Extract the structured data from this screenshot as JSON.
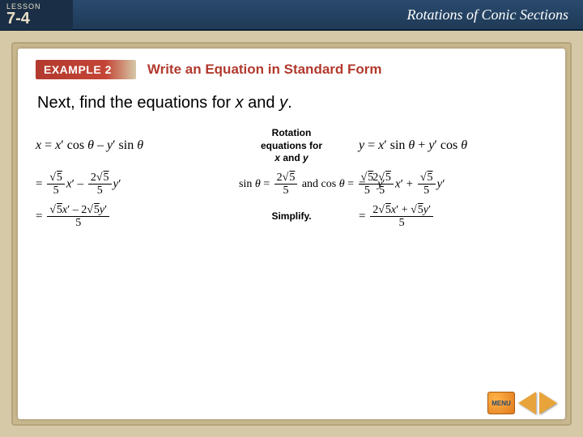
{
  "header": {
    "lesson_label": "LESSON",
    "lesson_number": "7-4",
    "title": "Rotations of Conic Sections"
  },
  "example": {
    "badge": "EXAMPLE 2",
    "title": "Write an Equation in Standard Form"
  },
  "instruction": {
    "prefix": "Next, find the equations for ",
    "x": "x",
    "and": " and ",
    "y": "y",
    "suffix": "."
  },
  "notes": {
    "rotation": "Rotation equations for x and y",
    "simplify": "Simplify."
  },
  "math": {
    "row1_left_plain": "x = x′ cos θ – y′ sin θ",
    "row1_right_plain": "y = x′ sin θ + y′ cos θ",
    "row2_center_prefix": "sin θ = ",
    "row2_center_mid": " and cos θ = ",
    "sqrt5": "5",
    "two_sqrt5": "2",
    "five": "5"
  },
  "nav": {
    "menu": "MENU"
  },
  "colors": {
    "page_bg": "#d6c9a8",
    "header_bg": "#1e3a56",
    "accent_red": "#b23a2e",
    "frame": "#c9b88f",
    "arrow": "#e8a43a"
  }
}
